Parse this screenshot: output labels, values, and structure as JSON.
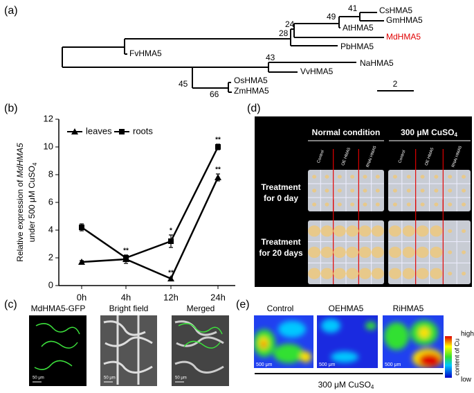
{
  "panel_a": {
    "label": "(a)",
    "leaves": [
      "CsHMA5",
      "GmHMA5",
      "AtHMA5",
      "MdHMA5",
      "PbHMA5",
      "FvHMA5",
      "NaHMA5",
      "VvHMA5",
      "OsHMA5",
      "ZmHMA5"
    ],
    "bootstrap": [
      "41",
      "49",
      "24",
      "28",
      "43",
      "45",
      "66"
    ],
    "scale": "2"
  },
  "panel_b_label": "(b)",
  "chart_data": {
    "type": "line",
    "y_label": [
      "Relative expression of ",
      "MdHMA5",
      "under 500 μM CuSO",
      "4"
    ],
    "categories": [
      "0h",
      "4h",
      "12h",
      "24h"
    ],
    "series": [
      {
        "name": "leaves",
        "color": "#000000",
        "marker": "triangle",
        "values": [
          1.7,
          1.9,
          0.5,
          7.8
        ],
        "errors": [
          0.1,
          0.3,
          0.1,
          0.25
        ],
        "significance": [
          null,
          "**",
          "**",
          "**"
        ]
      },
      {
        "name": "roots",
        "color": "#000000",
        "marker": "square",
        "values": [
          4.2,
          2.0,
          3.2,
          10.0
        ],
        "errors": [
          0.25,
          0.2,
          0.45,
          0.2
        ],
        "significance": [
          null,
          null,
          "*",
          "**"
        ]
      }
    ],
    "ylim": [
      0,
      12
    ],
    "yticks": [
      0,
      2,
      4,
      6,
      8,
      10,
      12
    ],
    "legend": "upper left"
  },
  "panel_c": {
    "label": "(c)",
    "titles": [
      "MdHMA5-GFP",
      "Bright field",
      "Merged"
    ],
    "scale": "50 μm"
  },
  "panel_d": {
    "label": "(d)",
    "conditions": [
      "Normal condition",
      [
        "300 μM CuSO",
        "4"
      ]
    ],
    "columns": [
      "Control",
      "OE HMA5",
      "RNAi HMA5"
    ],
    "rows": [
      [
        "Treatment",
        "for 0 day"
      ],
      [
        "Treatment",
        "for 20 days"
      ]
    ]
  },
  "panel_e": {
    "label": "(e)",
    "titles": [
      "Control",
      "OEHMA5",
      "RiHMA5"
    ],
    "colorbar": {
      "high": "high",
      "low": "low",
      "title": "content of Cu"
    },
    "scale": "500 μm",
    "treatment": [
      "300 μM CuSO",
      "4"
    ]
  }
}
